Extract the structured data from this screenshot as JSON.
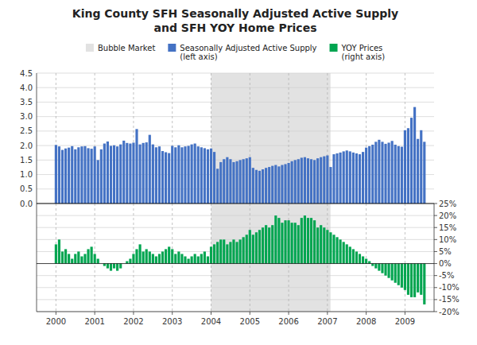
{
  "chart_data": [
    {
      "type": "bar",
      "title": "King County SFH Seasonally Adjusted Active Supply\nand SFH YOY Home Prices",
      "legend": "top",
      "grid": true,
      "tick_labels": "y",
      "xlim": [
        1999.5,
        2009.75
      ],
      "xticks": [
        2000,
        2001,
        2002,
        2003,
        2004,
        2005,
        2006,
        2007,
        2008,
        2009
      ],
      "ylim": [
        0.0,
        4.5
      ],
      "yticks": [
        {
          "value": 0.0,
          "label": "0.0"
        },
        0.5,
        {
          "value": 1.0,
          "label": "1.0"
        },
        1.5,
        {
          "value": 2.0,
          "label": "2.0"
        },
        2.5,
        {
          "value": 3.0,
          "label": "3.0"
        },
        3.5,
        {
          "value": 4.0,
          "label": "4.0"
        },
        4.5
      ],
      "x": [
        2000.0,
        2000.083,
        2000.167,
        2000.25,
        2000.333,
        2000.417,
        2000.5,
        2000.583,
        2000.667,
        2000.75,
        2000.833,
        2000.917,
        2001.0,
        2001.083,
        2001.167,
        2001.25,
        2001.333,
        2001.417,
        2001.5,
        2001.583,
        2001.667,
        2001.75,
        2001.833,
        2001.917,
        2002.0,
        2002.083,
        2002.167,
        2002.25,
        2002.333,
        2002.417,
        2002.5,
        2002.583,
        2002.667,
        2002.75,
        2002.833,
        2002.917,
        2003.0,
        2003.083,
        2003.167,
        2003.25,
        2003.333,
        2003.417,
        2003.5,
        2003.583,
        2003.667,
        2003.75,
        2003.833,
        2003.917,
        2004.0,
        2004.083,
        2004.167,
        2004.25,
        2004.333,
        2004.417,
        2004.5,
        2004.583,
        2004.667,
        2004.75,
        2004.833,
        2004.917,
        2005.0,
        2005.083,
        2005.167,
        2005.25,
        2005.333,
        2005.417,
        2005.5,
        2005.583,
        2005.667,
        2005.75,
        2005.833,
        2005.917,
        2006.0,
        2006.083,
        2006.167,
        2006.25,
        2006.333,
        2006.417,
        2006.5,
        2006.583,
        2006.667,
        2006.75,
        2006.833,
        2006.917,
        2007.0,
        2007.083,
        2007.167,
        2007.25,
        2007.333,
        2007.417,
        2007.5,
        2007.583,
        2007.667,
        2007.75,
        2007.833,
        2007.917,
        2008.0,
        2008.083,
        2008.167,
        2008.25,
        2008.333,
        2008.417,
        2008.5,
        2008.583,
        2008.667,
        2008.75,
        2008.833,
        2008.917,
        2009.0,
        2009.083,
        2009.167,
        2009.25,
        2009.333,
        2009.417,
        2009.5
      ],
      "series": [
        {
          "name": "Bubble Market",
          "type": "span",
          "color": "#d3d3d3",
          "x": [
            2004.0,
            2007.08
          ]
        },
        {
          "name": "Seasonally Adjusted Active Supply\n(left axis)",
          "color": "#4472c4",
          "values": [
            2.02,
            1.97,
            1.85,
            1.9,
            1.93,
            1.98,
            1.87,
            1.94,
            1.97,
            1.98,
            1.91,
            1.89,
            1.97,
            1.5,
            1.87,
            2.07,
            2.14,
            1.99,
            2.01,
            1.97,
            2.04,
            2.17,
            2.09,
            2.07,
            2.1,
            2.57,
            2.04,
            2.09,
            2.11,
            2.37,
            2.04,
            1.94,
            1.97,
            1.81,
            1.77,
            1.74,
            1.99,
            1.94,
            2.01,
            1.94,
            1.97,
            1.99,
            2.04,
            2.07,
            1.97,
            1.94,
            1.91,
            1.87,
            1.9,
            1.78,
            1.2,
            1.43,
            1.53,
            1.6,
            1.53,
            1.43,
            1.46,
            1.5,
            1.53,
            1.56,
            1.6,
            1.23,
            1.16,
            1.13,
            1.18,
            1.23,
            1.26,
            1.3,
            1.33,
            1.28,
            1.33,
            1.36,
            1.4,
            1.46,
            1.5,
            1.53,
            1.58,
            1.6,
            1.56,
            1.53,
            1.5,
            1.56,
            1.6,
            1.63,
            1.66,
            1.26,
            1.7,
            1.73,
            1.76,
            1.8,
            1.83,
            1.8,
            1.76,
            1.73,
            1.7,
            1.78,
            1.93,
            1.98,
            2.03,
            2.13,
            2.2,
            2.13,
            2.06,
            2.1,
            2.16,
            2.03,
            1.98,
            1.96,
            2.53,
            2.6,
            2.96,
            3.33,
            2.23,
            2.53,
            2.13
          ]
        }
      ]
    },
    {
      "type": "bar",
      "grid": true,
      "xlim": [
        1999.5,
        2009.75
      ],
      "xticks": [
        2000,
        2001,
        2002,
        2003,
        2004,
        2005,
        2006,
        2007,
        2008,
        2009
      ],
      "y2lim": [
        -0.2,
        0.25
      ],
      "y2ticks": [
        {
          "value": -0.2,
          "label": "-20%"
        },
        {
          "value": -0.15,
          "label": "-15%"
        },
        {
          "value": -0.1,
          "label": "-10%"
        },
        {
          "value": -0.05,
          "label": "-5%"
        },
        {
          "value": 0.0,
          "label": "0%"
        },
        {
          "value": 0.05,
          "label": "5%"
        },
        {
          "value": 0.1,
          "label": "10%"
        },
        {
          "value": 0.15,
          "label": "15%"
        },
        {
          "value": 0.2,
          "label": "20%"
        },
        {
          "value": 0.25,
          "label": "25%"
        }
      ],
      "x": [
        2000.0,
        2000.083,
        2000.167,
        2000.25,
        2000.333,
        2000.417,
        2000.5,
        2000.583,
        2000.667,
        2000.75,
        2000.833,
        2000.917,
        2001.0,
        2001.083,
        2001.167,
        2001.25,
        2001.333,
        2001.417,
        2001.5,
        2001.583,
        2001.667,
        2001.75,
        2001.833,
        2001.917,
        2002.0,
        2002.083,
        2002.167,
        2002.25,
        2002.333,
        2002.417,
        2002.5,
        2002.583,
        2002.667,
        2002.75,
        2002.833,
        2002.917,
        2003.0,
        2003.083,
        2003.167,
        2003.25,
        2003.333,
        2003.417,
        2003.5,
        2003.583,
        2003.667,
        2003.75,
        2003.833,
        2003.917,
        2004.0,
        2004.083,
        2004.167,
        2004.25,
        2004.333,
        2004.417,
        2004.5,
        2004.583,
        2004.667,
        2004.75,
        2004.833,
        2004.917,
        2005.0,
        2005.083,
        2005.167,
        2005.25,
        2005.333,
        2005.417,
        2005.5,
        2005.583,
        2005.667,
        2005.75,
        2005.833,
        2005.917,
        2006.0,
        2006.083,
        2006.167,
        2006.25,
        2006.333,
        2006.417,
        2006.5,
        2006.583,
        2006.667,
        2006.75,
        2006.833,
        2006.917,
        2007.0,
        2007.083,
        2007.167,
        2007.25,
        2007.333,
        2007.417,
        2007.5,
        2007.583,
        2007.667,
        2007.75,
        2007.833,
        2007.917,
        2008.0,
        2008.083,
        2008.167,
        2008.25,
        2008.333,
        2008.417,
        2008.5,
        2008.583,
        2008.667,
        2008.75,
        2008.833,
        2008.917,
        2009.0,
        2009.083,
        2009.167,
        2009.25,
        2009.333,
        2009.417,
        2009.5
      ],
      "series": [
        {
          "name": "YOY Prices\n(right axis)",
          "color": "#00a550",
          "axis": "y2",
          "values": [
            0.08,
            0.1,
            0.05,
            0.06,
            0.04,
            0.02,
            0.04,
            0.05,
            0.03,
            0.04,
            0.06,
            0.07,
            0.04,
            0.02,
            0.0,
            -0.01,
            -0.02,
            -0.03,
            -0.02,
            -0.03,
            -0.02,
            0.0,
            0.01,
            0.02,
            0.04,
            0.06,
            0.08,
            0.05,
            0.06,
            0.05,
            0.04,
            0.03,
            0.04,
            0.05,
            0.06,
            0.07,
            0.06,
            0.04,
            0.05,
            0.04,
            0.03,
            0.02,
            0.03,
            0.04,
            0.03,
            0.04,
            0.05,
            0.03,
            0.07,
            0.08,
            0.09,
            0.1,
            0.1,
            0.08,
            0.09,
            0.1,
            0.09,
            0.1,
            0.11,
            0.12,
            0.14,
            0.12,
            0.13,
            0.14,
            0.15,
            0.16,
            0.15,
            0.16,
            0.2,
            0.19,
            0.17,
            0.18,
            0.18,
            0.17,
            0.17,
            0.16,
            0.19,
            0.2,
            0.19,
            0.19,
            0.18,
            0.15,
            0.16,
            0.15,
            0.14,
            0.13,
            0.12,
            0.11,
            0.1,
            0.09,
            0.08,
            0.07,
            0.06,
            0.05,
            0.04,
            0.03,
            0.02,
            0.01,
            -0.01,
            -0.02,
            -0.03,
            -0.04,
            -0.05,
            -0.06,
            -0.07,
            -0.08,
            -0.09,
            -0.1,
            -0.11,
            -0.13,
            -0.14,
            -0.14,
            -0.12,
            -0.13,
            -0.17
          ]
        }
      ]
    }
  ]
}
